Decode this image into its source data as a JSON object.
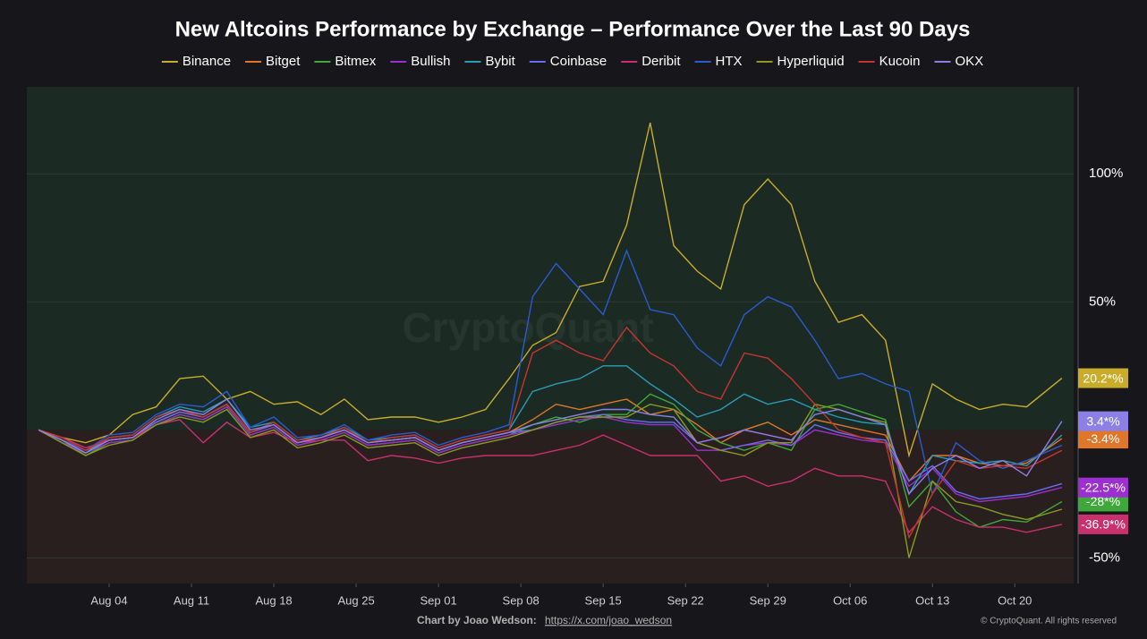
{
  "chart_data": {
    "type": "line",
    "title": "New Altcoins Performance by Exchange – Performance Over the Last 90 Days",
    "watermark": "CryptoQuant",
    "x": [
      -6,
      -4,
      -2,
      0,
      2,
      4,
      6,
      8,
      10,
      12,
      14,
      16,
      18,
      20,
      22,
      24,
      26,
      28,
      30,
      32,
      34,
      36,
      38,
      40,
      42,
      44,
      46,
      48,
      50,
      52,
      54,
      56,
      58,
      60,
      62,
      64,
      66,
      68,
      70,
      72,
      74,
      76,
      78,
      81
    ],
    "xlim": [
      -7,
      82
    ],
    "xticks": [
      {
        "value": 0,
        "label": "Aug 04"
      },
      {
        "value": 7,
        "label": "Aug 11"
      },
      {
        "value": 14,
        "label": "Aug 18"
      },
      {
        "value": 21,
        "label": "Aug 25"
      },
      {
        "value": 28,
        "label": "Sep 01"
      },
      {
        "value": 35,
        "label": "Sep 08"
      },
      {
        "value": 42,
        "label": "Sep 15"
      },
      {
        "value": 49,
        "label": "Sep 22"
      },
      {
        "value": 56,
        "label": "Sep 29"
      },
      {
        "value": 63,
        "label": "Oct 06"
      },
      {
        "value": 70,
        "label": "Oct 13"
      },
      {
        "value": 77,
        "label": "Oct 20"
      }
    ],
    "ylim": [
      -60,
      134
    ],
    "yticks": [
      {
        "value": -50,
        "label": "-50%"
      },
      {
        "value": 50,
        "label": "50%"
      },
      {
        "value": 100,
        "label": "100%"
      }
    ],
    "grid": true,
    "series": [
      {
        "name": "Binance",
        "color": "#c9ad2a",
        "last_label": "20.2*%",
        "values": [
          0,
          -3,
          -5,
          -2,
          6,
          9,
          20,
          21,
          12,
          15,
          10,
          11,
          6,
          12,
          4,
          5,
          5,
          3,
          5,
          8,
          20,
          33,
          38,
          56,
          58,
          80,
          120,
          72,
          62,
          55,
          88,
          98,
          88,
          58,
          42,
          45,
          35,
          -10,
          18,
          12,
          8,
          10,
          9,
          20.2
        ]
      },
      {
        "name": "Bitget",
        "color": "#e0762a",
        "last_label": "-3.4%",
        "values": [
          0,
          -4,
          -8,
          -4,
          -3,
          3,
          7,
          5,
          10,
          -1,
          2,
          -5,
          -3,
          0,
          -5,
          -4,
          -3,
          -8,
          -5,
          -3,
          -1,
          4,
          10,
          8,
          10,
          12,
          6,
          8,
          2,
          -5,
          0,
          3,
          -2,
          4,
          2,
          0,
          -2,
          -20,
          -10,
          -10,
          -13,
          -14,
          -13,
          -3.4
        ]
      },
      {
        "name": "Bitmex",
        "color": "#3fa83a",
        "last_label": "-28*%",
        "values": [
          0,
          -4,
          -10,
          -5,
          -4,
          2,
          6,
          4,
          9,
          -2,
          1,
          -6,
          -4,
          -1,
          -6,
          -5,
          -4,
          -9,
          -6,
          -4,
          -2,
          2,
          5,
          3,
          6,
          6,
          14,
          10,
          0,
          -5,
          -8,
          -5,
          -8,
          8,
          10,
          7,
          4,
          -30,
          -20,
          -32,
          -38,
          -35,
          -36,
          -28
        ]
      },
      {
        "name": "Bullish",
        "color": "#9b2fd0",
        "last_label": "-22.5*%",
        "values": [
          0,
          -5,
          -9,
          -5,
          -4,
          2,
          6,
          4,
          9,
          -2,
          1,
          -6,
          -4,
          -1,
          -6,
          -5,
          -4,
          -9,
          -6,
          -4,
          -2,
          0,
          2,
          4,
          5,
          3,
          2,
          2,
          -8,
          -8,
          -6,
          -5,
          -6,
          0,
          -2,
          -4,
          -5,
          -22,
          -15,
          -25,
          -28,
          -27,
          -26,
          -22.5
        ]
      },
      {
        "name": "Bybit",
        "color": "#2a9db5",
        "values": [
          0,
          -4,
          -9,
          -3,
          -2,
          5,
          9,
          7,
          12,
          1,
          3,
          -4,
          -2,
          1,
          -4,
          -3,
          -2,
          -7,
          -4,
          -2,
          0,
          15,
          18,
          20,
          25,
          25,
          18,
          12,
          5,
          8,
          14,
          10,
          12,
          8,
          5,
          3,
          2,
          -25,
          -10,
          -12,
          -13,
          -12,
          -14,
          -2
        ]
      },
      {
        "name": "Coinbase",
        "color": "#6b6cf0",
        "values": [
          0,
          -4,
          -9,
          -4,
          -3,
          3,
          7,
          5,
          10,
          -1,
          2,
          -5,
          -3,
          0,
          -5,
          -4,
          -3,
          -8,
          -5,
          -3,
          -1,
          0,
          3,
          5,
          6,
          4,
          3,
          3,
          -5,
          -8,
          -6,
          -4,
          -6,
          2,
          -1,
          -3,
          -4,
          -20,
          -14,
          -24,
          -27,
          -26,
          -25,
          -21
        ]
      },
      {
        "name": "Deribit",
        "color": "#c8306e",
        "last_label": "-36.9*%",
        "values": [
          0,
          -3,
          -7,
          -4,
          -3,
          2,
          4,
          -5,
          3,
          -3,
          -1,
          -5,
          -4,
          -4,
          -12,
          -10,
          -11,
          -13,
          -11,
          -10,
          -10,
          -10,
          -8,
          -6,
          -2,
          -6,
          -10,
          -10,
          -10,
          -20,
          -18,
          -22,
          -20,
          -15,
          -18,
          -18,
          -20,
          -40,
          -30,
          -35,
          -38,
          -38,
          -40,
          -36.9
        ]
      },
      {
        "name": "HTX",
        "color": "#2a5bd0",
        "values": [
          0,
          -4,
          -8,
          -2,
          -1,
          6,
          10,
          9,
          15,
          1,
          5,
          -3,
          -2,
          2,
          -4,
          -2,
          -1,
          -6,
          -3,
          -1,
          2,
          52,
          65,
          55,
          45,
          70,
          47,
          45,
          32,
          25,
          45,
          52,
          48,
          35,
          20,
          22,
          18,
          15,
          -25,
          -5,
          -12,
          -15,
          -12,
          -6
        ]
      },
      {
        "name": "Hyperliquid",
        "color": "#8a9a22",
        "values": [
          0,
          -5,
          -10,
          -6,
          -4,
          2,
          5,
          3,
          8,
          -3,
          0,
          -7,
          -5,
          -2,
          -7,
          -6,
          -5,
          -10,
          -7,
          -5,
          -3,
          0,
          3,
          5,
          5,
          5,
          10,
          8,
          -5,
          -8,
          -10,
          -5,
          -5,
          10,
          8,
          5,
          3,
          -50,
          -20,
          -28,
          -30,
          -33,
          -35,
          -31
        ]
      },
      {
        "name": "Kucoin",
        "color": "#c8352e",
        "values": [
          0,
          -3,
          -8,
          -3,
          -2,
          5,
          8,
          5,
          10,
          -1,
          3,
          -4,
          -3,
          1,
          -5,
          -3,
          -2,
          -7,
          -4,
          -2,
          0,
          30,
          35,
          30,
          27,
          40,
          30,
          25,
          15,
          12,
          30,
          28,
          20,
          10,
          0,
          -3,
          -5,
          -42,
          -25,
          -12,
          -15,
          -14,
          -15,
          -8
        ]
      },
      {
        "name": "OKX",
        "color": "#8c80e6",
        "last_label": "3.4*%",
        "values": [
          0,
          -4,
          -9,
          -4,
          -3,
          4,
          8,
          6,
          12,
          0,
          2,
          -5,
          -3,
          0,
          -5,
          -4,
          -3,
          -8,
          -5,
          -3,
          -1,
          2,
          4,
          6,
          8,
          8,
          6,
          5,
          -5,
          -3,
          0,
          -2,
          -4,
          6,
          8,
          5,
          2,
          -25,
          -15,
          -10,
          -15,
          -12,
          -18,
          3.4
        ]
      }
    ]
  },
  "footer": {
    "credit": "Chart by Joao Wedson:",
    "link": "https://x.com/joao_wedson",
    "copyright": "© CryptoQuant. All rights reserved"
  }
}
